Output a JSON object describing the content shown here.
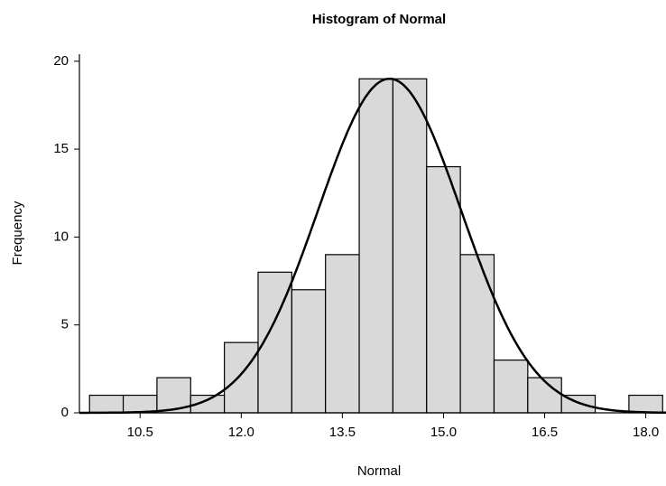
{
  "chart_data": {
    "type": "histogram",
    "title": "Histogram of Normal",
    "xlabel": "Normal",
    "ylabel": "Frequency",
    "bins": [
      9.75,
      10.25,
      10.75,
      11.25,
      11.75,
      12.25,
      12.75,
      13.25,
      13.75,
      14.25,
      14.75,
      15.25,
      15.75,
      16.25,
      16.75,
      17.25,
      17.75,
      18.25
    ],
    "values": [
      1,
      1,
      2,
      1,
      4,
      8,
      7,
      9,
      19,
      19,
      14,
      9,
      3,
      2,
      1,
      0,
      1
    ],
    "color": "#d9d9d9",
    "fit": {
      "mean": 14.2,
      "stdev": 1.06
    },
    "xlim": [
      9.6,
      18.3
    ],
    "xticks": [
      {
        "value": 10.5,
        "label": "10.5"
      },
      {
        "value": 12,
        "label": "12.0"
      },
      {
        "value": 13.5,
        "label": "13.5"
      },
      {
        "value": 15,
        "label": "15.0"
      },
      {
        "value": 16.5,
        "label": "16.5"
      },
      {
        "value": 18,
        "label": "18.0"
      }
    ],
    "ylim": [
      0,
      20.4
    ],
    "yticks": [
      0,
      5,
      10,
      15,
      20
    ]
  }
}
